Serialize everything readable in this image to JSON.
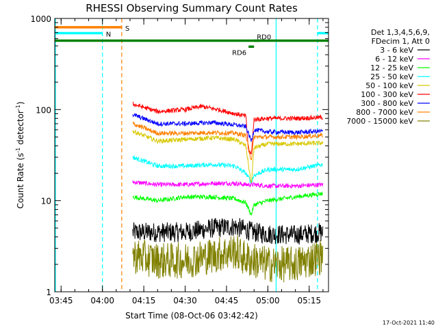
{
  "chart_data": {
    "type": "line",
    "title": "RHESSI Observing Summary Count Rates",
    "xlabel": "Start Time (08-Oct-06 03:42:42)",
    "ylabel": "Count Rate (s⁻¹ detector⁻¹)",
    "ylabel_parts": [
      "Count Rate (s",
      "-1",
      " detector",
      "-1",
      ")"
    ],
    "yscale": "log",
    "ylim": [
      1,
      1000
    ],
    "xlim": [
      "03:42:42",
      "05:22:00"
    ],
    "x_ticks": [
      "03:45",
      "04:00",
      "04:15",
      "04:30",
      "04:45",
      "05:00",
      "05:15"
    ],
    "y_ticks": [
      "1",
      "10",
      "100",
      "1000"
    ],
    "legend_header": [
      "Det 1,3,4,5,6,9,",
      "FDecim 1, Att 0"
    ],
    "legend_placement": "right",
    "timestamp": "17-Oct-2021 11:40",
    "data_start": "04:11:00",
    "data_end": "05:20:00",
    "series": [
      {
        "name": "3 - 6 keV",
        "color": "#000000",
        "times": [
          "04:11",
          "04:20",
          "04:30",
          "04:40",
          "04:48",
          "04:52",
          "04:55",
          "05:00",
          "05:10",
          "05:20"
        ],
        "values": [
          4.5,
          4.5,
          4.5,
          5.0,
          5.2,
          4.8,
          4.5,
          4.3,
          4.2,
          4.5
        ]
      },
      {
        "name": "6 - 12 keV",
        "color": "#ff00ff",
        "times": [
          "04:11",
          "04:20",
          "04:30",
          "04:40",
          "04:48",
          "04:52",
          "04:55",
          "05:00",
          "05:10",
          "05:20"
        ],
        "values": [
          16,
          15,
          15,
          15.5,
          15.5,
          15,
          15,
          14.5,
          14.5,
          15
        ]
      },
      {
        "name": "12 - 25 keV",
        "color": "#00ff00",
        "times": [
          "04:11",
          "04:20",
          "04:30",
          "04:40",
          "04:48",
          "04:52",
          "04:54",
          "04:55",
          "05:00",
          "05:10",
          "05:20"
        ],
        "values": [
          11,
          10,
          11,
          11,
          10.5,
          9.5,
          7,
          9,
          10,
          11,
          12
        ]
      },
      {
        "name": "25 - 50 keV",
        "color": "#00ffff",
        "times": [
          "04:11",
          "04:20",
          "04:30",
          "04:40",
          "04:48",
          "04:52",
          "04:54",
          "04:55",
          "05:00",
          "05:10",
          "05:20"
        ],
        "values": [
          30,
          24,
          24,
          25,
          24,
          20,
          16,
          19,
          22,
          22,
          25
        ]
      },
      {
        "name": "50 - 100 keV",
        "color": "#d8c800",
        "times": [
          "04:11",
          "04:20",
          "04:30",
          "04:40",
          "04:48",
          "04:52",
          "04:54",
          "04:55",
          "05:00",
          "05:10",
          "05:20"
        ],
        "values": [
          58,
          45,
          47,
          49,
          47,
          40,
          15,
          38,
          42,
          42,
          43
        ]
      },
      {
        "name": "100 - 300 keV",
        "color": "#ff0000",
        "times": [
          "04:11",
          "04:20",
          "04:30",
          "04:36",
          "04:42",
          "04:48",
          "04:52",
          "04:53",
          "04:54",
          "04:55",
          "05:00",
          "05:10",
          "05:20"
        ],
        "values": [
          115,
          95,
          100,
          108,
          100,
          90,
          85,
          35,
          32,
          78,
          80,
          80,
          82
        ]
      },
      {
        "name": "300 - 800 keV",
        "color": "#0000ff",
        "times": [
          "04:11",
          "04:20",
          "04:30",
          "04:40",
          "04:48",
          "04:52",
          "04:54",
          "04:55",
          "05:00",
          "05:10",
          "05:20"
        ],
        "values": [
          88,
          70,
          70,
          72,
          68,
          65,
          45,
          60,
          57,
          56,
          58
        ]
      },
      {
        "name": "800 - 7000 keV",
        "color": "#ff8000",
        "times": [
          "04:11",
          "04:20",
          "04:30",
          "04:40",
          "04:48",
          "04:52",
          "04:54",
          "04:55",
          "05:00",
          "05:10",
          "05:20"
        ],
        "values": [
          70,
          55,
          55,
          56,
          55,
          52,
          28,
          50,
          50,
          50,
          52
        ]
      },
      {
        "name": "7000 - 15000 keV",
        "color": "#808000",
        "times": [
          "04:11",
          "04:20",
          "04:30",
          "04:40",
          "04:48",
          "04:52",
          "04:55",
          "05:00",
          "05:10",
          "05:20"
        ],
        "values": [
          2.5,
          2.2,
          2.2,
          2.5,
          2.8,
          2.3,
          2.2,
          2.0,
          2.0,
          2.5
        ]
      }
    ],
    "segments": [
      {
        "label": "S",
        "color": "#ff8000",
        "start": "03:42:42",
        "end": "04:07:00",
        "level": 800
      },
      {
        "label": "N",
        "color": "#00ffff",
        "start": "03:42:42",
        "end": "04:00:00",
        "level": 690
      },
      {
        "label": "",
        "color": "#00ffff",
        "start": "05:18:00",
        "end": "05:22:00",
        "level": 690
      },
      {
        "label": "",
        "color": "#008000",
        "start": "03:42:42",
        "end": "05:22:00",
        "level": 570
      },
      {
        "label": "RD0",
        "color": "#008000",
        "start": "04:55:00",
        "end": "04:57:00",
        "level": 570
      },
      {
        "label": "RD6",
        "color": "#008000",
        "start": "04:53:00",
        "end": "04:55:00",
        "level": 490
      }
    ],
    "markers": [
      {
        "time": "03:42:42",
        "color": "#00ffff",
        "style": "solid"
      },
      {
        "time": "04:00:00",
        "color": "#00ffff",
        "style": "dashed"
      },
      {
        "time": "04:07:00",
        "color": "#ff8000",
        "style": "dashed"
      },
      {
        "time": "05:03:00",
        "color": "#00ffff",
        "style": "solid"
      },
      {
        "time": "05:18:00",
        "color": "#00ffff",
        "style": "dashed"
      }
    ]
  }
}
